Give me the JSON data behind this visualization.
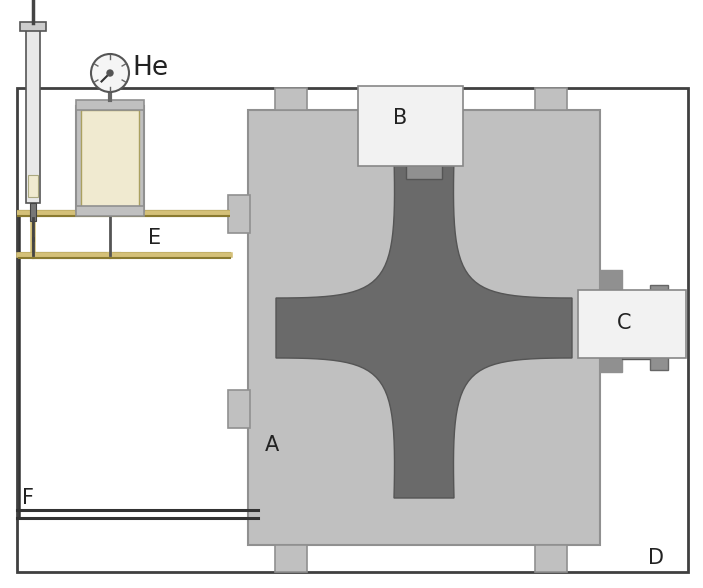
{
  "bg_color": "#ffffff",
  "border_color": "#404040",
  "light_gray": "#c0c0c0",
  "mid_gray": "#909090",
  "dark_gray": "#707070",
  "xshape_gray": "#6a6a6a",
  "cream": "#f0ead0",
  "tube_color": "#d4c078",
  "tube_dark": "#8a7a30",
  "label_A": "A",
  "label_B": "B",
  "label_C": "C",
  "label_D": "D",
  "label_E": "E",
  "label_F": "F",
  "label_He": "He",
  "label_fs": 15,
  "label_color": "#222222"
}
